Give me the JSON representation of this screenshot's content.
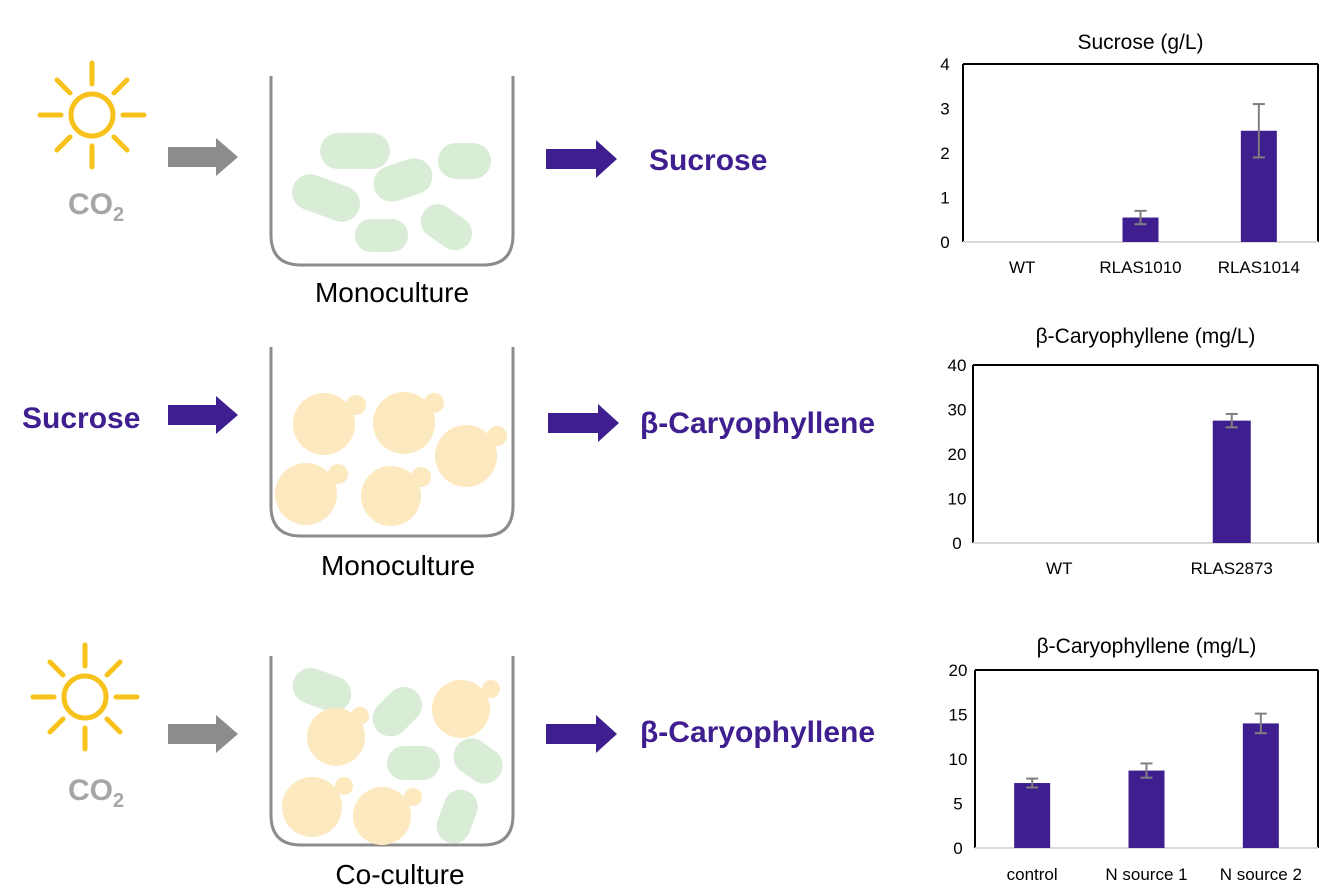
{
  "colors": {
    "purple": "#3f1f8f",
    "grey_arrow": "#8c8c8c",
    "sun": "#f7c21b",
    "cyano_cell": "#d9ecd6",
    "yeast_cell": "#fde9bf",
    "beaker": "#8c8c8c",
    "bar": "#3f1f8f",
    "error_bar": "#7f7f7f"
  },
  "icons": [
    "sun-icon",
    "beaker-icon",
    "arrow-icon",
    "cyanobacteria-cell-icon",
    "yeast-cell-icon"
  ],
  "rows": [
    {
      "input_main": "CO",
      "input_sub": "2",
      "input_icon": "sun-icon",
      "beaker_label": "Monoculture",
      "output": "Sucrose"
    },
    {
      "input_main": "Sucrose",
      "input_sub": "",
      "input_icon": "",
      "beaker_label": "Monoculture",
      "output": "β-Caryophyllene"
    },
    {
      "input_main": "CO",
      "input_sub": "2",
      "input_icon": "sun-icon",
      "beaker_label": "Co-culture",
      "output": "β-Caryophyllene"
    }
  ],
  "chart_data": [
    {
      "type": "bar",
      "title": "Sucrose (g/L)",
      "categories": [
        "WT",
        "RLAS1010",
        "RLAS1014"
      ],
      "values": [
        0,
        0.55,
        2.5
      ],
      "errors": [
        0,
        0.15,
        0.6
      ],
      "ylim": [
        0,
        4
      ],
      "yticks": [
        0,
        1,
        2,
        3,
        4
      ],
      "grid": false
    },
    {
      "type": "bar",
      "title": "β-Caryophyllene (mg/L)",
      "categories": [
        "WT",
        "RLAS2873"
      ],
      "values": [
        0,
        27.5
      ],
      "errors": [
        0,
        1.5
      ],
      "ylim": [
        0,
        40
      ],
      "yticks": [
        0,
        10,
        20,
        30,
        40
      ],
      "grid": false
    },
    {
      "type": "bar",
      "title": "β-Caryophyllene (mg/L)",
      "categories": [
        "control",
        "N source 1",
        "N source 2"
      ],
      "values": [
        7.3,
        8.7,
        14.0
      ],
      "errors": [
        0.5,
        0.8,
        1.1
      ],
      "ylim": [
        0,
        20
      ],
      "yticks": [
        0,
        5,
        10,
        15,
        20
      ],
      "grid": false
    }
  ]
}
